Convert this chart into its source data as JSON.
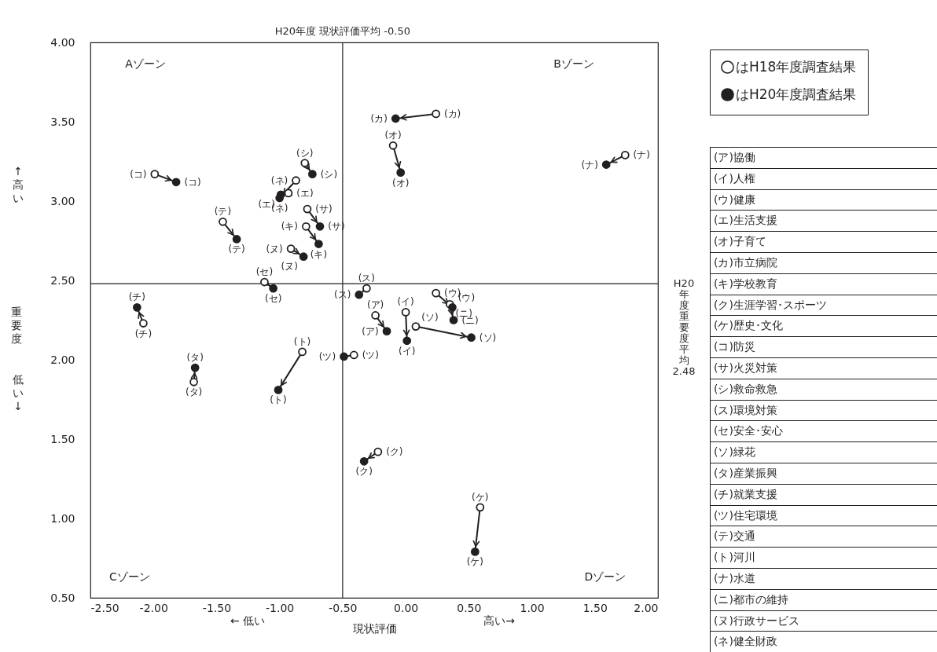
{
  "chart_data": {
    "type": "scatter",
    "marker": "circle",
    "grid": false,
    "legend": "top right",
    "xlabel": "現状評価",
    "ylabel": "重要度",
    "xlim": [
      -2.5,
      2.0
    ],
    "xticks": [
      {
        "value": -2.5,
        "label": "-2.50"
      },
      {
        "value": -2.0,
        "label": "-2.00"
      },
      {
        "value": -1.5,
        "label": "-1.50"
      },
      {
        "value": -1.0,
        "label": "-1.00"
      },
      {
        "value": -0.5,
        "label": "-0.50"
      },
      {
        "value": 0,
        "label": "0.00"
      },
      {
        "value": 0.5,
        "label": "0.50"
      },
      {
        "value": 1.0,
        "label": "1.00"
      },
      {
        "value": 1.5,
        "label": "1.50"
      },
      {
        "value": 2.0,
        "label": "2.00"
      }
    ],
    "ylim": [
      0.5,
      4.0
    ],
    "yticks": [
      {
        "value": 0.5,
        "label": "0.50"
      },
      {
        "value": 1.0,
        "label": "1.00"
      },
      {
        "value": 1.5,
        "label": "1.50"
      },
      {
        "value": 2.0,
        "label": "2.00"
      },
      {
        "value": 2.5,
        "label": "2.50"
      },
      {
        "value": 3.0,
        "label": "3.00"
      },
      {
        "value": 3.5,
        "label": "3.50"
      },
      {
        "value": 4.0,
        "label": "4.00"
      }
    ],
    "series": [
      {
        "name": "はH18年度調査結果",
        "color": "#ffffff",
        "x": [
          -0.24,
          0.0,
          0.24,
          -0.93,
          -0.1,
          0.24,
          -0.79,
          -0.22,
          0.59,
          -1.99,
          -0.78,
          -0.8,
          -0.31,
          -1.12,
          0.08,
          -1.68,
          -2.08,
          -0.41,
          -1.45,
          -0.82,
          1.74,
          0.35,
          -0.91,
          -0.87
        ],
        "values": [
          2.28,
          2.3,
          2.42,
          3.05,
          3.35,
          3.55,
          2.84,
          1.42,
          1.07,
          3.17,
          2.95,
          3.24,
          2.45,
          2.49,
          2.21,
          1.86,
          2.23,
          2.03,
          2.87,
          2.05,
          3.29,
          2.35,
          2.7,
          3.13
        ],
        "value_labels": [
          "(ア)",
          "(イ)",
          "(ウ)",
          "(エ)",
          "(オ)",
          "(カ)",
          "(キ)",
          "(ク)",
          "(ケ)",
          "(コ)",
          "(サ)",
          "(シ)",
          "(ス)",
          "(セ)",
          "(ソ)",
          "(タ)",
          "(チ)",
          "(ツ)",
          "(テ)",
          "(ト)",
          "(ナ)",
          "(ニ)",
          "(ヌ)",
          "(ネ)"
        ]
      },
      {
        "name": "はH20年度調査結果",
        "color": "#231f20",
        "x": [
          -0.15,
          0.01,
          0.37,
          -0.99,
          -0.04,
          -0.08,
          -0.69,
          -0.33,
          0.55,
          -1.82,
          -0.68,
          -0.74,
          -0.37,
          -1.05,
          0.52,
          -1.67,
          -2.13,
          -0.49,
          -1.34,
          -1.01,
          1.59,
          0.38,
          -0.81,
          -1.0
        ],
        "values": [
          2.18,
          2.12,
          2.33,
          3.04,
          3.18,
          3.52,
          2.73,
          1.36,
          0.79,
          3.12,
          2.84,
          3.17,
          2.41,
          2.45,
          2.14,
          1.95,
          2.33,
          2.02,
          2.76,
          1.81,
          3.23,
          2.25,
          2.65,
          3.02
        ],
        "value_labels": [
          "(ア)",
          "(イ)",
          "(ウ)",
          "(エ)",
          "(オ)",
          "(カ)",
          "(キ)",
          "(ク)",
          "(ケ)",
          "(コ)",
          "(サ)",
          "(シ)",
          "(ス)",
          "(セ)",
          "(ソ)",
          "(タ)",
          "(チ)",
          "(ツ)",
          "(テ)",
          "(ト)",
          "(ナ)",
          "(ニ)",
          "(ヌ)",
          "(ネ)"
        ]
      }
    ],
    "ref_lines": [
      {
        "axis": "x",
        "value": -0.5,
        "label": "H20年度 現状評価平均 -0.50",
        "color": "#231f20"
      },
      {
        "axis": "y",
        "value": 2.48,
        "label": "H20年度重要度平均 2.48",
        "color": "#231f20"
      }
    ],
    "annotations": [
      "Aゾーン",
      "Bゾーン",
      "Cゾーン",
      "Dゾーン",
      "← 低い",
      "高い→",
      "↑高い",
      "低い↓",
      "(ア)協働",
      "(イ)人権",
      "(ウ)健康",
      "(エ)生活支援",
      "(オ)子育て",
      "(カ)市立病院",
      "(キ)学校教育",
      "(ク)生涯学習･スポーツ",
      "(ケ)歴史･文化",
      "(コ)防災",
      "(サ)火災対策",
      "(シ)救命救急",
      "(ス)環境対策",
      "(セ)安全･安心",
      "(ソ)緑花",
      "(タ)産業振興",
      "(チ)就業支援",
      "(ツ)住宅環境",
      "(テ)交通",
      "(ト)河川",
      "(ナ)水道",
      "(ニ)都市の維持",
      "(ヌ)行政サービス",
      "(ネ)健全財政"
    ]
  }
}
